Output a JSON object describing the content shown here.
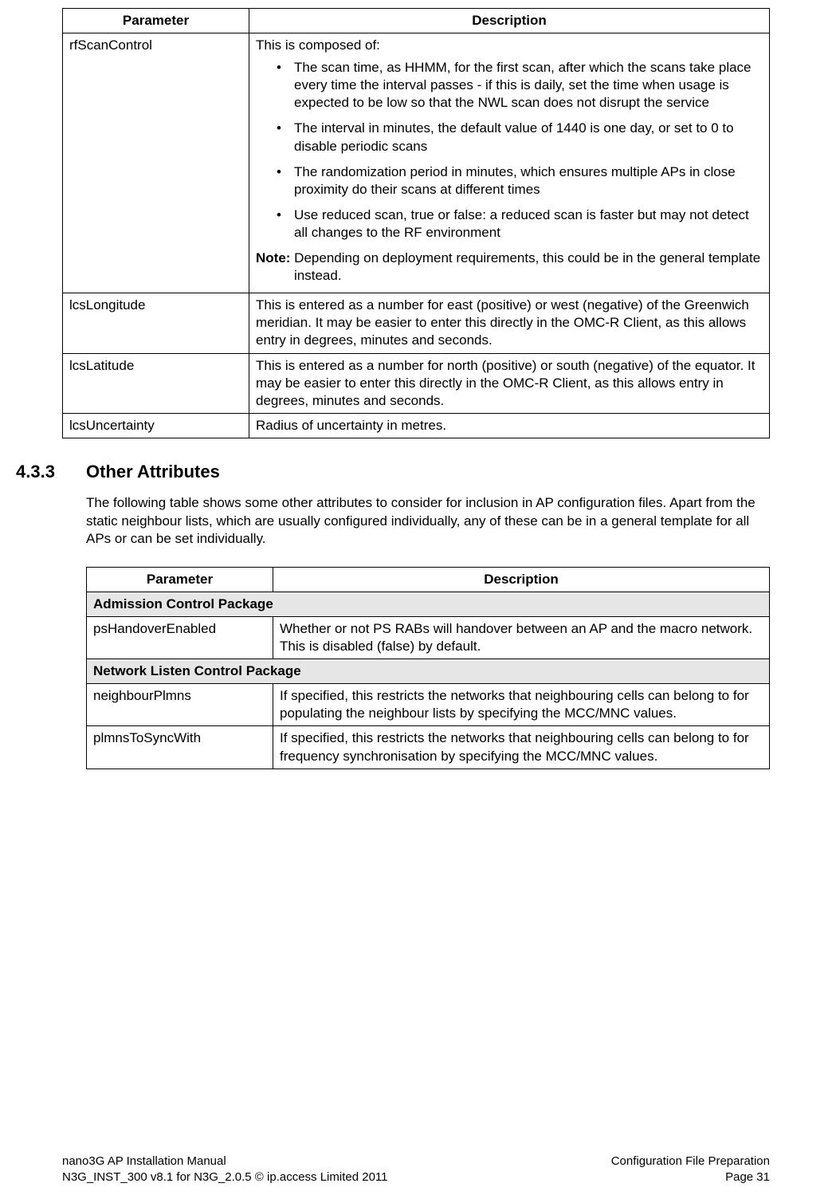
{
  "table1": {
    "headers": {
      "param": "Parameter",
      "desc": "Description"
    },
    "rows": [
      {
        "param": "rfScanControl",
        "intro": "This is composed of:",
        "bullets": [
          "The scan time, as HHMM, for the first scan, after which the scans take place every time the interval passes - if this is daily, set the time when usage is expected to be low so that the NWL scan does not disrupt the service",
          "The interval in minutes, the default value of 1440 is one day, or set to 0 to disable periodic scans",
          "The randomization period in minutes, which ensures multiple APs in close proximity do their scans at different times",
          "Use reduced scan, true or false: a reduced scan is faster but may not detect all changes to the RF environment"
        ],
        "note_label": "Note:",
        "note_text": " Depending on deployment requirements, this could be in the general template instead."
      },
      {
        "param": "lcsLongitude",
        "desc": "This is entered as a number for east (positive) or west (negative) of the Greenwich meridian. It may be easier to enter this directly in the OMC-R Client, as this allows entry in degrees, minutes and seconds."
      },
      {
        "param": "lcsLatitude",
        "desc": "This is entered as a number for north (positive) or south (negative) of the equator. It may be easier to enter this directly in the OMC-R Client, as this allows entry in degrees, minutes and seconds."
      },
      {
        "param": "lcsUncertainty",
        "desc": "Radius of uncertainty in metres."
      }
    ]
  },
  "section": {
    "number": "4.3.3",
    "title": "Other Attributes",
    "intro": "The following table shows some other attributes to consider for inclusion in AP configuration files. Apart from the static neighbour lists, which are usually configured individually, any of these can be in a general template for all APs or can be set individually."
  },
  "table2": {
    "headers": {
      "param": "Parameter",
      "desc": "Description"
    },
    "group1": "Admission Control Package",
    "row1": {
      "param": "psHandoverEnabled",
      "desc": "Whether or not PS RABs will handover between an AP and the macro network. This is disabled (false) by default."
    },
    "group2": "Network Listen Control Package",
    "row2": {
      "param": "neighbourPlmns",
      "desc": "If specified, this restricts the networks that neighbouring cells can belong to for populating the neighbour lists by specifying the MCC/MNC values."
    },
    "row3": {
      "param": "plmnsToSyncWith",
      "desc": "If specified, this restricts the networks that neighbouring cells can belong to for frequency synchronisation by specifying the MCC/MNC values."
    }
  },
  "footer": {
    "left1": "nano3G AP Installation Manual",
    "left2": "N3G_INST_300 v8.1 for N3G_2.0.5 © ip.access Limited 2011",
    "right1": "Configuration File Preparation",
    "right2": "Page 31"
  }
}
